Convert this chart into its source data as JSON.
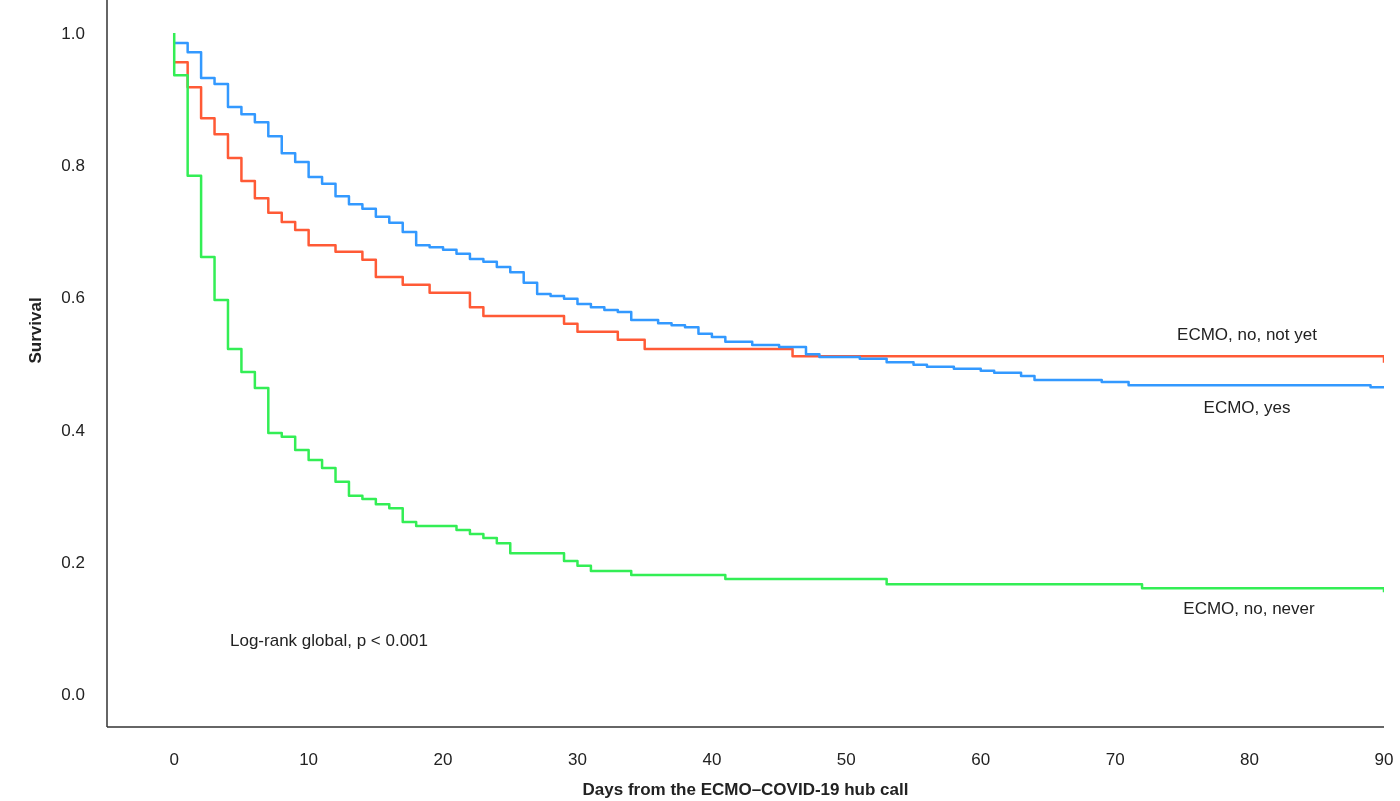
{
  "chart_data": {
    "type": "step",
    "xlabel": "Days from the ECMO–COVID-19 hub call",
    "ylabel": "Survival",
    "xlim": [
      -5,
      90
    ],
    "xticks": [
      0,
      10,
      20,
      30,
      40,
      50,
      60,
      70,
      80,
      90
    ],
    "ylim": [
      -0.05,
      1.05
    ],
    "yticks": [
      {
        "value": 0,
        "label": "0.0"
      },
      {
        "value": 0.2,
        "label": "0.2"
      },
      {
        "value": 0.4,
        "label": "0.4"
      },
      {
        "value": 0.6,
        "label": "0.6"
      },
      {
        "value": 0.8,
        "label": "0.8"
      },
      {
        "value": 1,
        "label": "1.0"
      }
    ],
    "grid": false,
    "legend": false,
    "marker": "none",
    "line_style": "solid",
    "annotations": [
      "Log-rank global, p < 0.001"
    ],
    "series": [
      {
        "name": "ECMO, no, not yet",
        "color": "#ff5a36",
        "x": [
          0,
          1,
          2,
          3,
          4,
          5,
          6,
          7,
          8,
          9,
          10,
          12,
          14,
          15,
          17,
          19,
          22,
          23,
          29,
          30,
          33,
          35,
          46,
          90
        ],
        "values": [
          0.956,
          0.918,
          0.871,
          0.847,
          0.811,
          0.776,
          0.75,
          0.728,
          0.714,
          0.702,
          0.679,
          0.669,
          0.657,
          0.631,
          0.619,
          0.607,
          0.585,
          0.572,
          0.56,
          0.548,
          0.536,
          0.522,
          0.511,
          0.501
        ]
      },
      {
        "name": "ECMO, yes",
        "color": "#3399ff",
        "x": [
          0,
          1,
          2,
          3,
          4,
          5,
          6,
          7,
          8,
          9,
          10,
          11,
          12,
          13,
          14,
          15,
          16,
          17,
          18,
          19,
          20,
          21,
          22,
          23,
          24,
          25,
          26,
          27,
          28,
          29,
          30,
          31,
          32,
          33,
          34,
          36,
          37,
          38,
          39,
          40,
          41,
          43,
          45,
          47,
          48,
          51,
          53,
          55,
          56,
          58,
          60,
          61,
          63,
          64,
          69,
          71,
          89,
          90
        ],
        "values": [
          0.985,
          0.971,
          0.932,
          0.923,
          0.888,
          0.877,
          0.865,
          0.844,
          0.818,
          0.805,
          0.782,
          0.772,
          0.753,
          0.741,
          0.734,
          0.722,
          0.713,
          0.699,
          0.679,
          0.676,
          0.672,
          0.666,
          0.658,
          0.654,
          0.646,
          0.638,
          0.622,
          0.605,
          0.602,
          0.598,
          0.59,
          0.585,
          0.581,
          0.578,
          0.566,
          0.561,
          0.558,
          0.555,
          0.545,
          0.54,
          0.533,
          0.528,
          0.525,
          0.514,
          0.51,
          0.507,
          0.502,
          0.498,
          0.495,
          0.492,
          0.489,
          0.486,
          0.481,
          0.475,
          0.472,
          0.467,
          0.464,
          0.464
        ]
      },
      {
        "name": "ECMO, no, never",
        "color": "#33ee55",
        "x": [
          0,
          0,
          1,
          2,
          3,
          4,
          5,
          6,
          7,
          8,
          9,
          10,
          11,
          12,
          13,
          14,
          15,
          16,
          17,
          18,
          21,
          22,
          23,
          24,
          25,
          29,
          30,
          31,
          34,
          41,
          53,
          72,
          90
        ],
        "values": [
          1,
          0.936,
          0.784,
          0.661,
          0.596,
          0.522,
          0.487,
          0.463,
          0.395,
          0.389,
          0.369,
          0.354,
          0.342,
          0.321,
          0.3,
          0.295,
          0.287,
          0.281,
          0.26,
          0.254,
          0.248,
          0.242,
          0.236,
          0.228,
          0.213,
          0.201,
          0.194,
          0.186,
          0.18,
          0.174,
          0.166,
          0.16,
          0.154
        ]
      }
    ]
  }
}
